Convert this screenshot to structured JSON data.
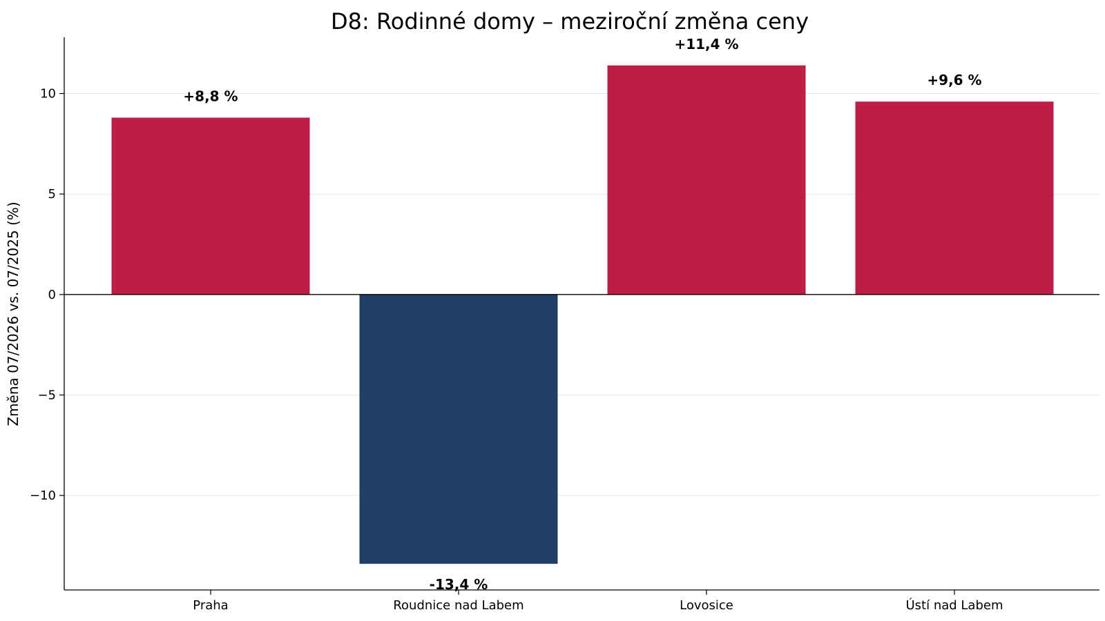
{
  "chart_data": {
    "type": "bar",
    "title": "D8: Rodinné domy – meziroční změna ceny",
    "xlabel": "",
    "ylabel": "Změna 07/2026 vs. 07/2025 (%)",
    "categories": [
      "Praha",
      "Roudnice nad Labem",
      "Lovosice",
      "Ústí nad Labem"
    ],
    "values": [
      8.8,
      -13.4,
      11.4,
      9.6
    ],
    "data_labels": [
      "+8,8 %",
      "-13,4 %",
      "+11,4 %",
      "+9,6 %"
    ],
    "ylim": [
      -14.7,
      12.8
    ],
    "yticks": [
      -10,
      -5,
      0,
      5,
      10
    ],
    "ytick_labels": [
      "−10",
      "−5",
      "0",
      "5",
      "10"
    ],
    "grid": "horizontal",
    "colors": {
      "positive": "#be1e45",
      "negative": "#213e66",
      "zero_line": "#000000",
      "grid": "#e6e6e6"
    }
  }
}
